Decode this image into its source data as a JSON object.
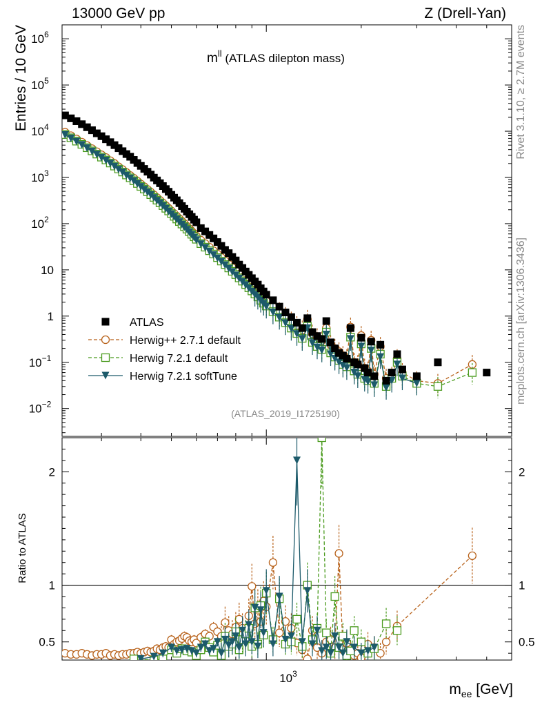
{
  "header": {
    "left": "13000 GeV pp",
    "right": "Z (Drell-Yan)"
  },
  "side_text": {
    "rivet": "Rivet 3.1.10, ≥ 2.7M events",
    "mcplots": "mcplots.cern.ch [arXiv:1306.3436]"
  },
  "plot_title": {
    "main": "m",
    "sup": "ll",
    "rest": " (ATLAS dilepton mass)"
  },
  "analysis_id": "(ATLAS_2019_I1725190)",
  "axes": {
    "ylabel_top": "Entries / 10 GeV",
    "ylabel_bottom": "Ratio to ATLAS",
    "xlabel_main": "m",
    "xlabel_sub": "ee",
    "xlabel_unit": " [GeV]",
    "x_tick_main": "10",
    "x_tick_exp": "3",
    "y_ticks_top": [
      {
        "base": "10",
        "exp": "6"
      },
      {
        "base": "10",
        "exp": "5"
      },
      {
        "base": "10",
        "exp": "4"
      },
      {
        "base": "10",
        "exp": "3"
      },
      {
        "base": "10",
        "exp": "2"
      },
      {
        "base": "10",
        "exp": ""
      },
      {
        "base": "1",
        "exp": ""
      },
      {
        "base": "10",
        "exp": "−1"
      },
      {
        "base": "10",
        "exp": "−2"
      }
    ],
    "y_ticks_ratio": [
      "2",
      "1",
      "0.5"
    ]
  },
  "legend": [
    {
      "label": "ATLAS",
      "color": "#000000",
      "marker": "square-filled",
      "line": "none"
    },
    {
      "label": "Herwig++ 2.7.1 default",
      "color": "#b8621b",
      "marker": "circle-open",
      "line": "dashed"
    },
    {
      "label": "Herwig 7.2.1 default",
      "color": "#4b9b1f",
      "marker": "square-open",
      "line": "dashed"
    },
    {
      "label": "Herwig 7.2.1 softTune",
      "color": "#1c5a6a",
      "marker": "triangle-down-filled",
      "line": "solid"
    }
  ],
  "chart_data": {
    "type": "scatter",
    "x_scale": "log",
    "y_scale_top": "log",
    "xlim": [
      225,
      6000
    ],
    "ylim_top": [
      0.0025,
      2000000
    ],
    "ylim_ratio": [
      0.34,
      2.3
    ],
    "series": [
      {
        "name": "ATLAS",
        "x": [
          230,
          240,
          250,
          260,
          270,
          280,
          290,
          300,
          310,
          320,
          330,
          340,
          350,
          360,
          370,
          380,
          390,
          400,
          410,
          420,
          430,
          440,
          450,
          460,
          470,
          480,
          490,
          500,
          510,
          520,
          530,
          540,
          550,
          560,
          570,
          580,
          590,
          600,
          620,
          640,
          660,
          680,
          700,
          720,
          740,
          760,
          780,
          800,
          820,
          840,
          860,
          880,
          900,
          920,
          940,
          960,
          980,
          1000,
          1050,
          1100,
          1150,
          1200,
          1250,
          1300,
          1350,
          1400,
          1450,
          1500,
          1550,
          1600,
          1650,
          1700,
          1750,
          1800,
          1850,
          1900,
          1950,
          2000,
          2050,
          2100,
          2150,
          2200,
          2300,
          2400,
          2500,
          2600,
          2700,
          3000,
          3500,
          5000
        ],
        "y": [
          22000,
          19000,
          16500,
          14200,
          12200,
          10500,
          9000,
          7800,
          6700,
          5800,
          5000,
          4300,
          3700,
          3200,
          2800,
          2400,
          2050,
          1780,
          1530,
          1330,
          1150,
          990,
          860,
          750,
          650,
          560,
          490,
          420,
          365,
          320,
          278,
          240,
          210,
          182,
          160,
          140,
          122,
          107,
          80,
          68,
          57,
          48,
          40,
          33,
          27,
          23,
          19,
          16,
          13,
          11,
          9.2,
          7.8,
          6.6,
          5.6,
          4.8,
          4.0,
          3.4,
          2.9,
          2.2,
          1.6,
          1.2,
          0.95,
          0.72,
          0.55,
          0.9,
          0.45,
          0.37,
          0.32,
          0.78,
          0.27,
          0.2,
          0.16,
          0.14,
          0.12,
          0.55,
          0.1,
          0.09,
          0.34,
          0.075,
          0.06,
          0.28,
          0.05,
          0.24,
          0.04,
          0.06,
          0.15,
          0.07,
          0.05,
          0.1,
          0.06
        ]
      },
      {
        "name": "Herwig++ 2.7.1 default",
        "x": [
          230,
          240,
          250,
          260,
          270,
          280,
          290,
          300,
          310,
          320,
          330,
          340,
          350,
          360,
          370,
          380,
          390,
          400,
          410,
          420,
          430,
          440,
          450,
          460,
          470,
          480,
          490,
          500,
          510,
          520,
          530,
          540,
          550,
          560,
          570,
          580,
          590,
          600,
          620,
          640,
          660,
          680,
          700,
          720,
          740,
          760,
          780,
          800,
          820,
          840,
          860,
          880,
          900,
          920,
          940,
          960,
          980,
          1000,
          1050,
          1100,
          1150,
          1200,
          1250,
          1300,
          1350,
          1400,
          1450,
          1500,
          1550,
          1600,
          1650,
          1700,
          1750,
          1800,
          1850,
          1900,
          1950,
          2000,
          2050,
          2100,
          2150,
          2200,
          2300,
          2400,
          2500,
          2600,
          2700,
          3000,
          3500,
          4500
        ],
        "y": [
          9500,
          8000,
          6800,
          5800,
          4900,
          4200,
          3600,
          3100,
          2700,
          2300,
          2000,
          1700,
          1480,
          1280,
          1100,
          960,
          830,
          720,
          630,
          550,
          480,
          420,
          365,
          320,
          280,
          245,
          215,
          188,
          165,
          145,
          128,
          113,
          100,
          88,
          78,
          69,
          61,
          54,
          44,
          37,
          31,
          26,
          22,
          18.5,
          15.6,
          13.2,
          11.2,
          9.5,
          8.1,
          6.9,
          5.9,
          5.0,
          4.3,
          3.7,
          3.2,
          2.8,
          2.4,
          2.1,
          1.6,
          1.25,
          0.98,
          0.78,
          0.62,
          0.5,
          0.85,
          0.41,
          0.34,
          0.29,
          0.55,
          0.24,
          0.2,
          0.17,
          0.14,
          0.12,
          0.58,
          0.1,
          0.09,
          0.38,
          0.075,
          0.065,
          0.3,
          0.055,
          0.22,
          0.045,
          0.05,
          0.12,
          0.06,
          0.04,
          0.035,
          0.09
        ]
      },
      {
        "name": "Herwig 7.2.1 default",
        "x": [
          230,
          240,
          250,
          260,
          270,
          280,
          290,
          300,
          310,
          320,
          330,
          340,
          350,
          360,
          370,
          380,
          390,
          400,
          410,
          420,
          430,
          440,
          450,
          460,
          470,
          480,
          490,
          500,
          510,
          520,
          530,
          540,
          550,
          560,
          570,
          580,
          590,
          600,
          620,
          640,
          660,
          680,
          700,
          720,
          740,
          760,
          780,
          800,
          820,
          840,
          860,
          880,
          900,
          920,
          940,
          960,
          980,
          1000,
          1050,
          1100,
          1150,
          1200,
          1250,
          1300,
          1350,
          1400,
          1450,
          1500,
          1550,
          1600,
          1650,
          1700,
          1750,
          1800,
          1850,
          1900,
          1950,
          2000,
          2050,
          2100,
          2150,
          2200,
          2300,
          2400,
          2500,
          2600,
          2700,
          3000,
          3500,
          4500
        ],
        "y": [
          8500,
          7200,
          6100,
          5200,
          4400,
          3750,
          3200,
          2750,
          2380,
          2050,
          1760,
          1520,
          1310,
          1130,
          980,
          850,
          740,
          640,
          560,
          490,
          425,
          370,
          322,
          282,
          246,
          215,
          188,
          165,
          144,
          126,
          111,
          98,
          86,
          76,
          67,
          59,
          52,
          46,
          37,
          31,
          26,
          22,
          18.4,
          15.5,
          13.0,
          11.0,
          9.3,
          7.9,
          6.7,
          5.7,
          4.8,
          4.1,
          3.5,
          3.0,
          2.6,
          2.2,
          1.9,
          1.65,
          1.25,
          0.95,
          0.72,
          0.55,
          0.42,
          0.33,
          0.6,
          0.27,
          0.22,
          0.19,
          0.45,
          0.16,
          0.13,
          0.11,
          0.09,
          0.08,
          0.35,
          0.065,
          0.055,
          0.25,
          0.045,
          0.04,
          0.2,
          0.035,
          0.15,
          0.03,
          0.045,
          0.1,
          0.05,
          0.035,
          0.03,
          0.06
        ]
      },
      {
        "name": "Herwig 7.2.1 softTune",
        "x": [
          230,
          240,
          250,
          260,
          270,
          280,
          290,
          300,
          310,
          320,
          330,
          340,
          350,
          360,
          370,
          380,
          390,
          400,
          410,
          420,
          430,
          440,
          450,
          460,
          470,
          480,
          490,
          500,
          510,
          520,
          530,
          540,
          550,
          560,
          570,
          580,
          590,
          600,
          620,
          640,
          660,
          680,
          700,
          720,
          740,
          760,
          780,
          800,
          820,
          840,
          860,
          880,
          900,
          920,
          940,
          960,
          980,
          1000,
          1050,
          1100,
          1150,
          1200,
          1250,
          1300,
          1350,
          1400,
          1450,
          1500,
          1550,
          1600,
          1650,
          1700,
          1750,
          1800,
          1850,
          1900,
          1950,
          2000,
          2050,
          2100,
          2150,
          2200,
          2300,
          2400,
          2500,
          2600,
          2700,
          3000
        ],
        "y": [
          8300,
          7000,
          5950,
          5050,
          4300,
          3650,
          3120,
          2680,
          2320,
          2000,
          1720,
          1480,
          1280,
          1100,
          955,
          830,
          720,
          625,
          545,
          475,
          415,
          360,
          314,
          275,
          240,
          210,
          183,
          160,
          140,
          123,
          108,
          95,
          84,
          74,
          65,
          57,
          50,
          44,
          36,
          30,
          25,
          21,
          17.8,
          15.0,
          12.6,
          10.6,
          9.0,
          7.6,
          6.5,
          5.5,
          4.7,
          4.0,
          3.4,
          2.9,
          2.5,
          2.15,
          1.85,
          1.6,
          1.2,
          0.92,
          0.7,
          0.53,
          0.41,
          0.32,
          0.55,
          0.26,
          0.21,
          0.18,
          0.4,
          0.15,
          0.12,
          0.1,
          0.085,
          0.075,
          0.32,
          0.06,
          0.05,
          0.22,
          0.042,
          0.038,
          0.18,
          0.032,
          0.13,
          0.028,
          0.04,
          0.09,
          0.045,
          0.035
        ]
      }
    ],
    "ratio": [
      {
        "name": "Herwig++ 2.7.1 default",
        "x": [
          230,
          240,
          250,
          260,
          270,
          280,
          290,
          300,
          310,
          320,
          330,
          340,
          350,
          360,
          370,
          380,
          390,
          400,
          410,
          420,
          430,
          440,
          450,
          460,
          470,
          480,
          490,
          500,
          510,
          520,
          530,
          540,
          550,
          560,
          570,
          580,
          590,
          600,
          620,
          640,
          660,
          680,
          700,
          720,
          740,
          760,
          780,
          800,
          820,
          840,
          860,
          880,
          900,
          920,
          940,
          960,
          980,
          1000,
          1050,
          1100,
          1150,
          1200,
          1250,
          1300,
          1350,
          1400,
          1450,
          1500,
          1550,
          1600,
          1650,
          1700,
          1750,
          1800,
          1850,
          1900,
          1950,
          2000,
          2050,
          2100,
          2200,
          2300,
          2400,
          2600,
          4500
        ],
        "y": [
          0.4,
          0.39,
          0.39,
          0.4,
          0.39,
          0.38,
          0.39,
          0.39,
          0.4,
          0.38,
          0.39,
          0.38,
          0.39,
          0.39,
          0.4,
          0.4,
          0.41,
          0.4,
          0.41,
          0.42,
          0.41,
          0.42,
          0.44,
          0.43,
          0.45,
          0.46,
          0.45,
          0.52,
          0.48,
          0.5,
          0.51,
          0.53,
          0.55,
          0.54,
          0.51,
          0.5,
          0.52,
          0.49,
          0.54,
          0.57,
          0.55,
          0.63,
          0.59,
          0.55,
          0.67,
          0.6,
          0.57,
          0.63,
          0.7,
          0.62,
          0.52,
          0.73,
          0.99,
          0.66,
          0.8,
          0.68,
          0.86,
          0.81,
          1.2,
          0.58,
          0.68,
          0.62,
          0.49,
          0.43,
          0.35,
          0.6,
          0.45,
          0.4,
          0.5,
          0.52,
          0.45,
          1.28,
          0.43,
          0.49,
          0.42,
          0.38,
          0.4,
          0.36,
          0.44,
          0.48,
          0.45,
          0.4,
          0.5,
          0.64,
          1.26
        ]
      },
      {
        "name": "Herwig 7.2.1 default",
        "x": [
          380,
          440,
          470,
          500,
          520,
          540,
          560,
          580,
          600,
          620,
          640,
          660,
          680,
          700,
          720,
          740,
          760,
          780,
          800,
          820,
          840,
          860,
          880,
          900,
          920,
          940,
          960,
          980,
          1000,
          1050,
          1100,
          1150,
          1200,
          1250,
          1300,
          1350,
          1400,
          1450,
          1500,
          1550,
          1600,
          1650,
          1700,
          1750,
          1800,
          1850,
          1900,
          2000,
          2100,
          2200,
          2400,
          2600
        ],
        "y": [
          0.35,
          0.34,
          0.35,
          0.43,
          0.4,
          0.44,
          0.42,
          0.41,
          0.38,
          0.43,
          0.5,
          0.45,
          0.41,
          0.47,
          0.38,
          0.55,
          0.46,
          0.48,
          0.59,
          0.43,
          0.52,
          0.57,
          0.62,
          0.46,
          0.8,
          0.48,
          0.82,
          0.56,
          0.93,
          0.52,
          0.88,
          0.48,
          0.5,
          0.7,
          0.46,
          1.0,
          0.52,
          0.62,
          2.3,
          0.58,
          0.4,
          0.9,
          0.45,
          0.55,
          0.38,
          0.42,
          0.6,
          0.5,
          0.4,
          0.44,
          0.66,
          0.6
        ]
      },
      {
        "name": "Herwig 7.2.1 softTune",
        "x": [
          400,
          440,
          470,
          500,
          520,
          540,
          560,
          580,
          600,
          620,
          640,
          660,
          680,
          700,
          720,
          740,
          760,
          780,
          800,
          820,
          840,
          860,
          880,
          900,
          920,
          940,
          960,
          980,
          1000,
          1050,
          1100,
          1150,
          1200,
          1250,
          1300,
          1350,
          1400,
          1450,
          1500,
          1550,
          1600,
          1650,
          1700,
          1750,
          1800,
          1900,
          2000,
          2100,
          2200
        ],
        "y": [
          0.35,
          0.37,
          0.4,
          0.45,
          0.42,
          0.43,
          0.44,
          0.42,
          0.4,
          0.45,
          0.48,
          0.42,
          0.44,
          0.5,
          0.4,
          0.52,
          0.47,
          0.5,
          0.55,
          0.45,
          0.6,
          0.48,
          0.65,
          0.5,
          0.8,
          0.46,
          0.78,
          0.58,
          0.95,
          0.48,
          0.9,
          0.52,
          0.55,
          2.1,
          0.5,
          0.95,
          0.48,
          0.6,
          0.42,
          0.45,
          0.4,
          0.55,
          0.45,
          0.4,
          0.5,
          0.45,
          0.4,
          0.42,
          0.45
        ]
      }
    ]
  }
}
